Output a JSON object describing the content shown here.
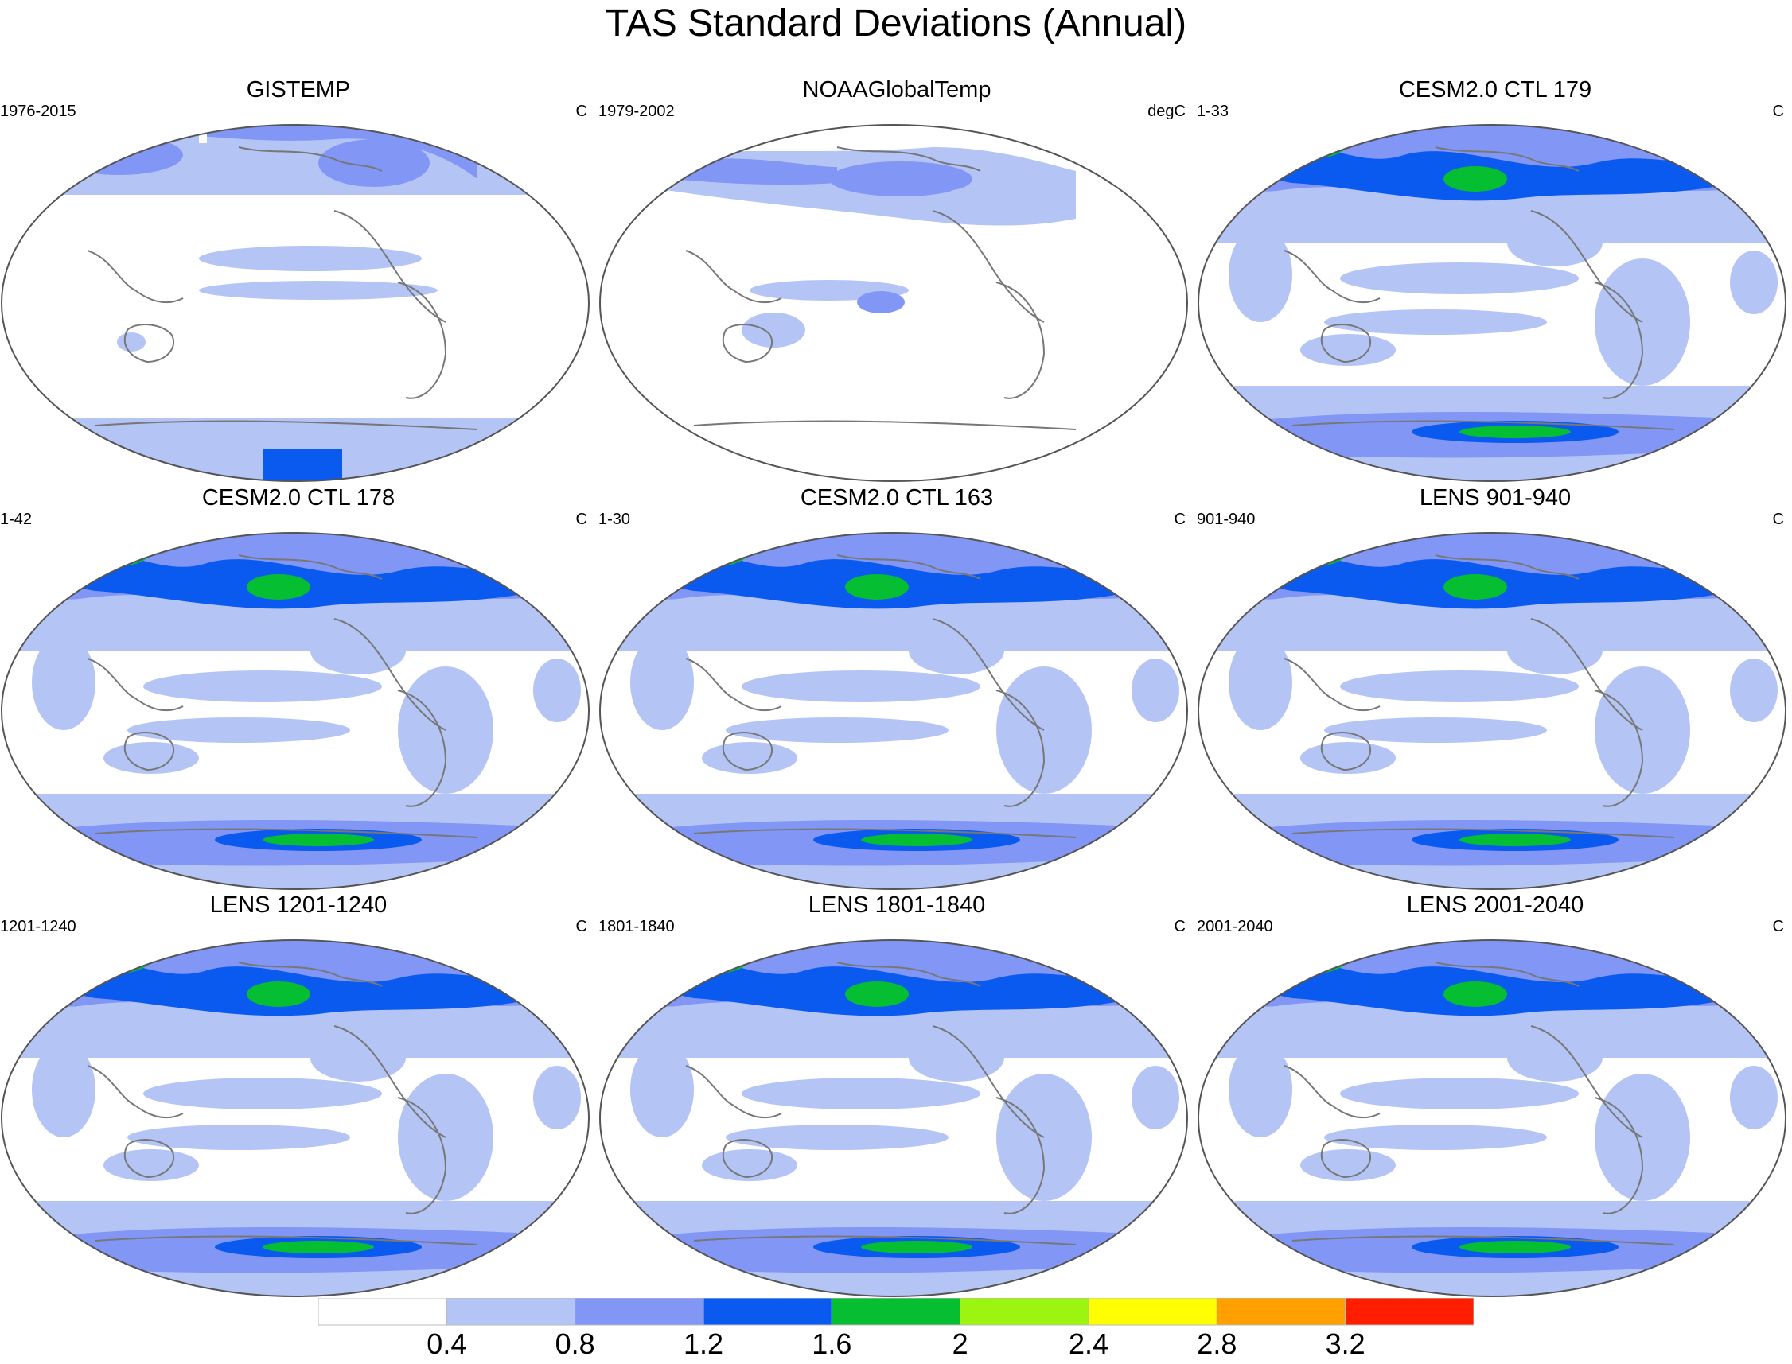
{
  "title": "TAS Standard Deviations (Annual)",
  "panels": [
    {
      "title": "GISTEMP",
      "years": "1976-2015",
      "units": "C",
      "style": "obs1"
    },
    {
      "title": "NOAAGlobalTemp",
      "years": "1979-2002",
      "units": "degC",
      "style": "obs2"
    },
    {
      "title": "CESM2.0 CTL 179",
      "years": "1-33",
      "units": "C",
      "style": "model"
    },
    {
      "title": "CESM2.0 CTL 178",
      "years": "1-42",
      "units": "C",
      "style": "model"
    },
    {
      "title": "CESM2.0 CTL 163",
      "years": "1-30",
      "units": "C",
      "style": "model"
    },
    {
      "title": "LENS 901-940",
      "years": "901-940",
      "units": "C",
      "style": "model"
    },
    {
      "title": "LENS 1201-1240",
      "years": "1201-1240",
      "units": "C",
      "style": "model"
    },
    {
      "title": "LENS 1801-1840",
      "years": "1801-1840",
      "units": "C",
      "style": "model"
    },
    {
      "title": "LENS 2001-2040",
      "years": "2001-2040",
      "units": "C",
      "style": "model"
    }
  ],
  "colorbar": {
    "labels": [
      "0.4",
      "0.8",
      "1.2",
      "1.6",
      "2",
      "2.4",
      "2.8",
      "3.2"
    ],
    "colors": [
      "#ffffff",
      "#b4c4f5",
      "#8296f5",
      "#0a5af0",
      "#05be32",
      "#9bf50f",
      "#ffff00",
      "#ffa000",
      "#ff1e00"
    ]
  }
}
